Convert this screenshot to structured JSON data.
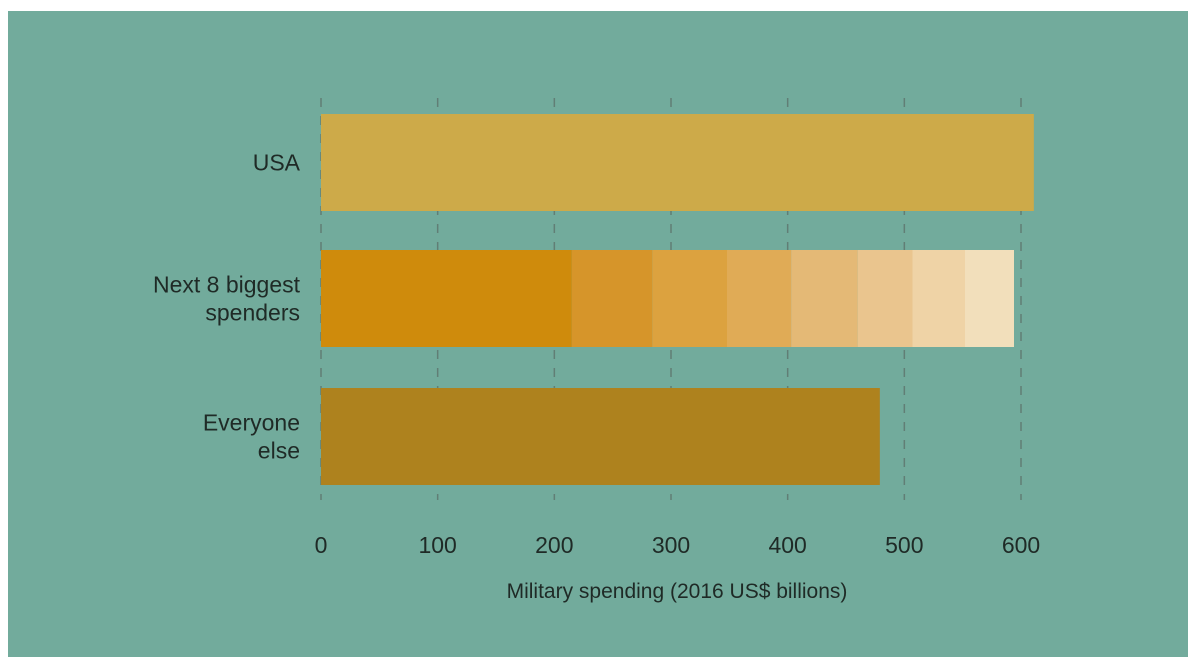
{
  "chart_data": {
    "type": "bar",
    "orientation": "horizontal",
    "stacked": true,
    "title": "",
    "xlabel": "Military spending (2016 US$ billions)",
    "ylabel": "",
    "xlim": [
      0,
      600
    ],
    "xticks": [
      0,
      100,
      200,
      300,
      400,
      500,
      600
    ],
    "grid": "vertical dashed",
    "categories": [
      {
        "label_lines": [
          "USA"
        ],
        "segments": [
          {
            "value": 611,
            "color": "#cdaa49"
          }
        ]
      },
      {
        "label_lines": [
          "Next 8 biggest",
          "spenders"
        ],
        "segments": [
          {
            "value": 215,
            "color": "#cf8b0c"
          },
          {
            "value": 69,
            "color": "#d6952a"
          },
          {
            "value": 64,
            "color": "#dca23f"
          },
          {
            "value": 55,
            "color": "#e0ab56"
          },
          {
            "value": 57,
            "color": "#e4b976"
          },
          {
            "value": 47,
            "color": "#eac58e"
          },
          {
            "value": 45,
            "color": "#efd3a6"
          },
          {
            "value": 42,
            "color": "#f2dfbb"
          }
        ]
      },
      {
        "label_lines": [
          "Everyone",
          "else"
        ],
        "segments": [
          {
            "value": 479,
            "color": "#ae821e"
          }
        ]
      }
    ]
  }
}
